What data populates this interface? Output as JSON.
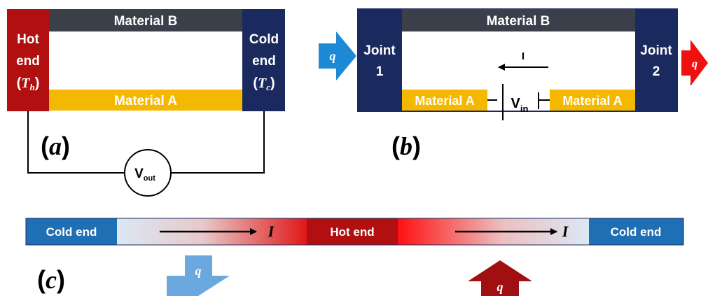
{
  "panel_a": {
    "material_b": "Material B",
    "material_a": "Material A",
    "hot_end_line1": "Hot",
    "hot_end_line2": "end",
    "hot_end_var": "T",
    "hot_end_sub": "h",
    "cold_end_line1": "Cold",
    "cold_end_line2": "end",
    "cold_end_var": "T",
    "cold_end_sub": "c",
    "voltmeter_main": "V",
    "voltmeter_sub": "out",
    "panel_label": "a"
  },
  "panel_b": {
    "material_b": "Material B",
    "joint1_line1": "Joint",
    "joint1_line2": "1",
    "joint2_line1": "Joint",
    "joint2_line2": "2",
    "material_a_left": "Material A",
    "material_a_right": "Material A",
    "source_main": "V",
    "source_sub": "in",
    "current_label": "I",
    "heat_in_label": "q",
    "heat_out_label": "q",
    "panel_label": "b"
  },
  "panel_c": {
    "cold_end_left": "Cold end",
    "hot_end": "Hot end",
    "cold_end_right": "Cold end",
    "current_left": "I",
    "current_right": "I",
    "heat_down_label": "q",
    "heat_up_label": "q",
    "panel_label": "c"
  },
  "colors": {
    "hot_red": "#b10f10",
    "cold_navy": "#1b2a5e",
    "material_b_gray": "#3a3f4a",
    "material_a_gold": "#f5b800",
    "cold_blue": "#1f6fb5",
    "heat_blue_arrow": "#1e8ad6",
    "heat_red_arrow": "#f01010",
    "light_blue_arrow": "#6aa8dd",
    "dark_red_arrow": "#a01010"
  }
}
